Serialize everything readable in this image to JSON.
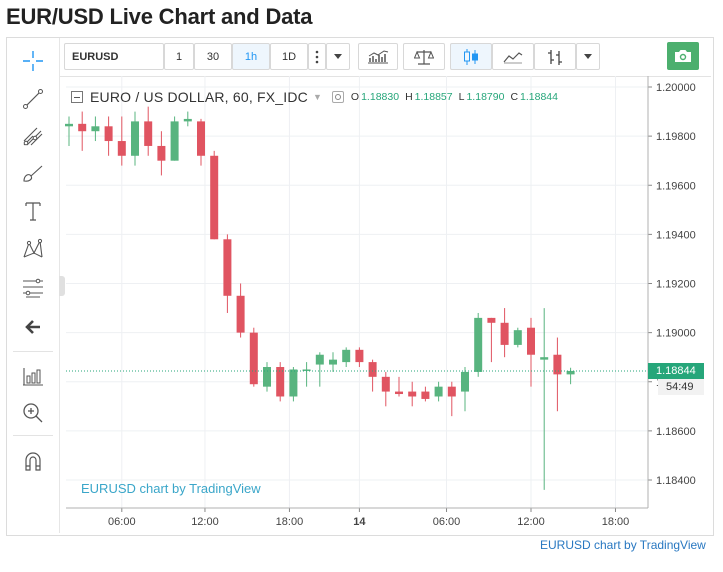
{
  "page": {
    "title": "EUR/USD Live Chart and Data",
    "footer_link": "EURUSD chart by TradingView"
  },
  "toolbar": {
    "symbol": "EURUSD",
    "intervals": [
      "1",
      "30",
      "1h",
      "1D"
    ],
    "active_interval": "1h",
    "more_icon": "vertical-dots-icon",
    "dropdown_icon": "caret-down-icon",
    "buttons": [
      "indicators-icon",
      "compare-scale-icon",
      "candles-icon",
      "line-chart-icon",
      "bars-icon"
    ],
    "camera_icon": "camera-icon"
  },
  "left_tools": [
    "crosshair-icon",
    "trend-line-icon",
    "pitchfork-icon",
    "brush-icon",
    "text-icon",
    "pattern-icon",
    "fib-icon",
    "back-arrow-icon",
    "measure-icon",
    "zoom-in-icon",
    "magnet-icon"
  ],
  "legend": {
    "title": "EURO / US DOLLAR, 60, FX_IDC",
    "o_label": "O",
    "o_value": "1.18830",
    "h_label": "H",
    "h_value": "1.18857",
    "l_label": "L",
    "l_value": "1.18790",
    "c_label": "C",
    "c_value": "1.18844"
  },
  "watermark": "EURUSD chart by TradingView",
  "current_price": "1.18844",
  "countdown": "54:49",
  "colors": {
    "up": "#58b47f",
    "down": "#e05461",
    "price_tag": "#26a67a",
    "accent": "#2196f3"
  },
  "chart_data": {
    "type": "candlestick",
    "title": "EURO / US DOLLAR, 60, FX_IDC",
    "x_tick_labels": [
      "06:00",
      "12:00",
      "18:00",
      "14",
      "06:00",
      "12:00",
      "18:00"
    ],
    "y_tick_labels": [
      "1.20000",
      "1.19800",
      "1.19600",
      "1.19400",
      "1.19200",
      "1.19000",
      "1.18800",
      "1.18600",
      "1.18400"
    ],
    "ylim": [
      1.1828,
      1.2006
    ],
    "bars": [
      {
        "t": "13 02:00",
        "o": 1.1984,
        "h": 1.1988,
        "l": 1.1976,
        "c": 1.1985
      },
      {
        "t": "13 03:00",
        "o": 1.1985,
        "h": 1.199,
        "l": 1.1974,
        "c": 1.1982
      },
      {
        "t": "13 04:00",
        "o": 1.1982,
        "h": 1.1988,
        "l": 1.1978,
        "c": 1.1984
      },
      {
        "t": "13 05:00",
        "o": 1.1984,
        "h": 1.1988,
        "l": 1.1972,
        "c": 1.1978
      },
      {
        "t": "13 06:00",
        "o": 1.1978,
        "h": 1.1988,
        "l": 1.1968,
        "c": 1.1972
      },
      {
        "t": "13 07:00",
        "o": 1.1972,
        "h": 1.199,
        "l": 1.1968,
        "c": 1.1986
      },
      {
        "t": "13 08:00",
        "o": 1.1986,
        "h": 1.1992,
        "l": 1.1972,
        "c": 1.1976
      },
      {
        "t": "13 09:00",
        "o": 1.1976,
        "h": 1.1982,
        "l": 1.1964,
        "c": 1.197
      },
      {
        "t": "13 10:00",
        "o": 1.197,
        "h": 1.1988,
        "l": 1.197,
        "c": 1.1986
      },
      {
        "t": "13 11:00",
        "o": 1.1986,
        "h": 1.199,
        "l": 1.1984,
        "c": 1.1987
      },
      {
        "t": "13 12:00",
        "o": 1.1986,
        "h": 1.1987,
        "l": 1.1968,
        "c": 1.1972
      },
      {
        "t": "13 13:00",
        "o": 1.1972,
        "h": 1.1974,
        "l": 1.1938,
        "c": 1.1938
      },
      {
        "t": "13 14:00",
        "o": 1.1938,
        "h": 1.194,
        "l": 1.1908,
        "c": 1.1915
      },
      {
        "t": "13 15:00",
        "o": 1.1915,
        "h": 1.192,
        "l": 1.1898,
        "c": 1.19
      },
      {
        "t": "13 16:00",
        "o": 1.19,
        "h": 1.1902,
        "l": 1.1878,
        "c": 1.1879
      },
      {
        "t": "13 17:00",
        "o": 1.1878,
        "h": 1.1888,
        "l": 1.1876,
        "c": 1.1886
      },
      {
        "t": "13 18:00",
        "o": 1.1886,
        "h": 1.1888,
        "l": 1.1872,
        "c": 1.1874
      },
      {
        "t": "13 19:00",
        "o": 1.1874,
        "h": 1.1886,
        "l": 1.1872,
        "c": 1.1885
      },
      {
        "t": "13 20:00",
        "o": 1.1885,
        "h": 1.1888,
        "l": 1.1878,
        "c": 1.1885
      },
      {
        "t": "13 21:00",
        "o": 1.1887,
        "h": 1.1892,
        "l": 1.1878,
        "c": 1.1891
      },
      {
        "t": "13 22:00",
        "o": 1.1887,
        "h": 1.1892,
        "l": 1.1884,
        "c": 1.1889
      },
      {
        "t": "13 23:00",
        "o": 1.1888,
        "h": 1.1894,
        "l": 1.1886,
        "c": 1.1893
      },
      {
        "t": "14 00:00",
        "o": 1.1893,
        "h": 1.1894,
        "l": 1.1886,
        "c": 1.1888
      },
      {
        "t": "14 01:00",
        "o": 1.1888,
        "h": 1.1889,
        "l": 1.1876,
        "c": 1.1882
      },
      {
        "t": "14 02:00",
        "o": 1.1882,
        "h": 1.1884,
        "l": 1.187,
        "c": 1.1876
      },
      {
        "t": "14 03:00",
        "o": 1.1876,
        "h": 1.1882,
        "l": 1.1874,
        "c": 1.1875
      },
      {
        "t": "14 04:00",
        "o": 1.1876,
        "h": 1.188,
        "l": 1.187,
        "c": 1.1874
      },
      {
        "t": "14 05:00",
        "o": 1.1876,
        "h": 1.1878,
        "l": 1.1872,
        "c": 1.1873
      },
      {
        "t": "14 06:00",
        "o": 1.1874,
        "h": 1.188,
        "l": 1.1872,
        "c": 1.1878
      },
      {
        "t": "14 07:00",
        "o": 1.1878,
        "h": 1.188,
        "l": 1.1866,
        "c": 1.1874
      },
      {
        "t": "14 08:00",
        "o": 1.1876,
        "h": 1.1886,
        "l": 1.1868,
        "c": 1.1884
      },
      {
        "t": "14 09:00",
        "o": 1.1884,
        "h": 1.1908,
        "l": 1.1882,
        "c": 1.1906
      },
      {
        "t": "14 10:00",
        "o": 1.1906,
        "h": 1.1906,
        "l": 1.1888,
        "c": 1.1904
      },
      {
        "t": "14 11:00",
        "o": 1.1904,
        "h": 1.191,
        "l": 1.189,
        "c": 1.1895
      },
      {
        "t": "14 12:00",
        "o": 1.1895,
        "h": 1.1902,
        "l": 1.1894,
        "c": 1.1901
      },
      {
        "t": "14 13:00",
        "o": 1.1902,
        "h": 1.1906,
        "l": 1.1878,
        "c": 1.1891
      },
      {
        "t": "14 14:00",
        "o": 1.1889,
        "h": 1.191,
        "l": 1.1836,
        "c": 1.189
      },
      {
        "t": "14 15:00",
        "o": 1.1891,
        "h": 1.1898,
        "l": 1.1868,
        "c": 1.1883
      },
      {
        "t": "14 16:00",
        "o": 1.1883,
        "h": 1.18857,
        "l": 1.1879,
        "c": 1.18844
      }
    ]
  }
}
